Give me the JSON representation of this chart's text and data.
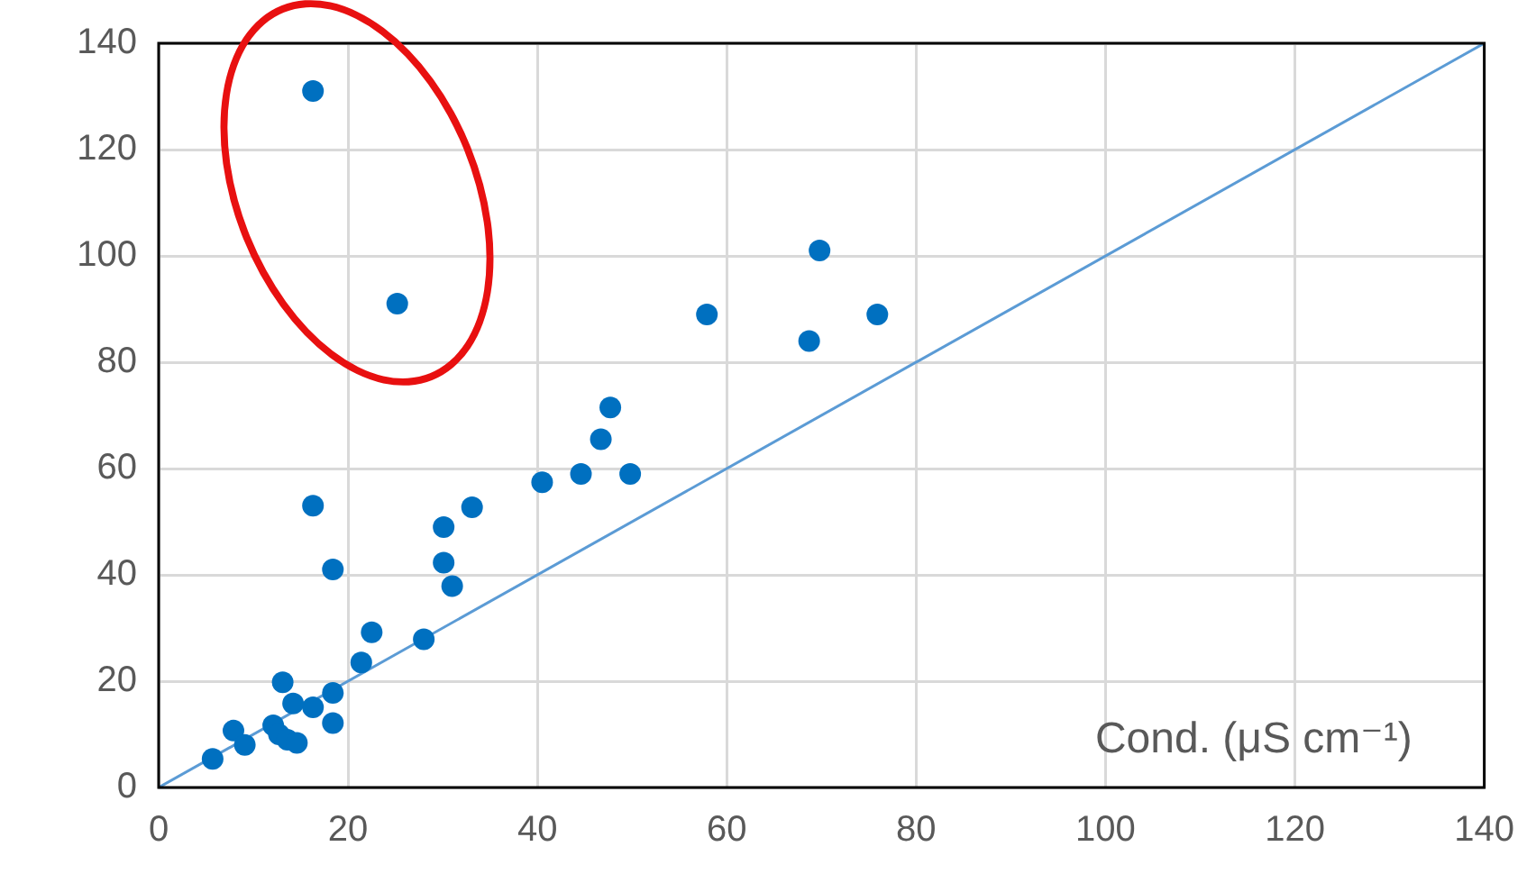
{
  "chart_data": {
    "type": "scatter",
    "xlabel": "Cond. (μS cm⁻¹)",
    "xlim": [
      0,
      140
    ],
    "xticks": [
      0,
      20,
      40,
      60,
      80,
      100,
      120,
      140
    ],
    "ylim": [
      0,
      140
    ],
    "yticks": [
      0,
      20,
      40,
      60,
      80,
      100,
      120,
      140
    ],
    "grid": true,
    "legend": false,
    "marker": "circle",
    "series": [
      {
        "type": "scatter",
        "color": "#0070c0",
        "x": [
          16.3,
          25.2,
          69.8,
          68.7,
          75.9,
          57.9,
          47.7,
          46.7,
          49.8,
          44.6,
          40.5,
          33.1,
          30.1,
          30.1,
          31,
          16.3,
          18.4,
          22.5,
          28,
          21.4,
          18.4,
          18.4,
          16.3,
          14.2,
          13.1,
          12.1,
          12.7,
          13.6,
          14.6,
          7.9,
          9.1,
          5.7
        ],
        "values": [
          131,
          91,
          101,
          84,
          89,
          89,
          71.5,
          65.5,
          59,
          59,
          57.4,
          52.7,
          49,
          42.3,
          37.9,
          53,
          41,
          29.2,
          27.9,
          23.5,
          17.8,
          12.1,
          15.1,
          15.8,
          19.8,
          11.7,
          10,
          9,
          8.4,
          10.7,
          8,
          5.4
        ]
      },
      {
        "type": "line",
        "color": "#5b9bd5",
        "x": [
          0,
          140
        ],
        "values": [
          0,
          140
        ],
        "marker": "none",
        "line_style": "solid"
      }
    ]
  }
}
